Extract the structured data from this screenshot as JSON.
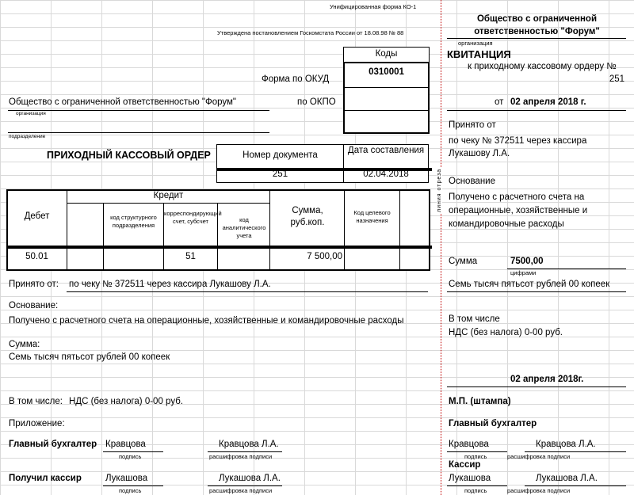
{
  "order": {
    "unified_form": "Унифицированная форма КО-1",
    "approved": "Утверждена постановлением Госкомстата России от 18.08.98 № 88",
    "codes_header": "Коды",
    "okud_label": "Форма по ОКУД",
    "okud_value": "0310001",
    "okpo_label": "по ОКПО",
    "organization": "Общество с ограниченной ответственностью \"Форум\"",
    "organization_caption": "организация",
    "subdivision_caption": "подразделение",
    "title": "ПРИХОДНЫЙ КАССОВЫЙ ОРДЕР",
    "doc_number_header": "Номер документа",
    "doc_date_header": "Дата составления",
    "doc_number": "251",
    "doc_date": "02.04.2018",
    "table": {
      "debit": "Дебет",
      "credit": "Кредит",
      "struct_code": "код структурного подразделения",
      "corr_account": "корреспондирующий счет, субсчет",
      "analytic_code": "код аналитического учета",
      "sum": "Сумма, руб.коп.",
      "purpose_code": "Код целевого назначения",
      "row": {
        "debit": "50.01",
        "corr_account": "51",
        "sum": "7 500,00"
      }
    },
    "received_from_label": "Принято от:",
    "received_from": "по чеку № 372511 через кассира Лукашову Л.А.",
    "basis_label": "Основание:",
    "basis": "Получено с расчетного счета на операционные, хозяйственные и командировочные расходы",
    "sum_label": "Сумма:",
    "sum_words": "Семь тысяч пятьсот рублей 00 копеек",
    "including_label": "В том числе:",
    "including": "НДС (без налога) 0-00 руб.",
    "appendix_label": "Приложение:",
    "chief_accountant_label": "Главный бухгалтер",
    "chief_accountant_sign": "Кравцова",
    "chief_accountant_name": "Кравцова Л.А.",
    "cashier_label": "Получил кассир",
    "cashier_sign": "Лукашова",
    "cashier_name": "Лукашова Л.А.",
    "signature_caption": "подпись",
    "decode_caption": "расшифровка подписи"
  },
  "cut_line": "линия отреза",
  "receipt": {
    "organization": "Общество с ограниченной ответственностью \"Форум\"",
    "organization_caption": "организация",
    "title": "КВИТАНЦИЯ",
    "to_order": "к приходному кассовому ордеру №",
    "order_number": "251",
    "date_prefix": "от",
    "date": "02 апреля 2018 г.",
    "received_from_label": "Принято от",
    "received_from": "по чеку № 372511 через кассира Лукашову Л.А.",
    "basis_label": "Основание",
    "basis": "Получено с расчетного счета на операционные, хозяйственные и командировочные расходы",
    "sum_label": "Сумма",
    "sum_value": "7500,00",
    "digits_caption": "цифрами",
    "sum_words": "Семь тысяч пятьсот рублей 00 копеек",
    "including_label": "В том числе",
    "including": "НДС (без налога) 0-00 руб.",
    "bottom_date": "02 апреля 2018г.",
    "stamp": "М.П. (штампа)",
    "chief_accountant_label": "Главный бухгалтер",
    "chief_accountant_sign": "Кравцова",
    "chief_accountant_name": "Кравцова Л.А.",
    "cashier_label": "Кассир",
    "cashier_sign": "Лукашова",
    "cashier_name": "Лукашова Л.А.",
    "signature_caption": "подпись",
    "decode_caption": "расшифровка подписи"
  }
}
